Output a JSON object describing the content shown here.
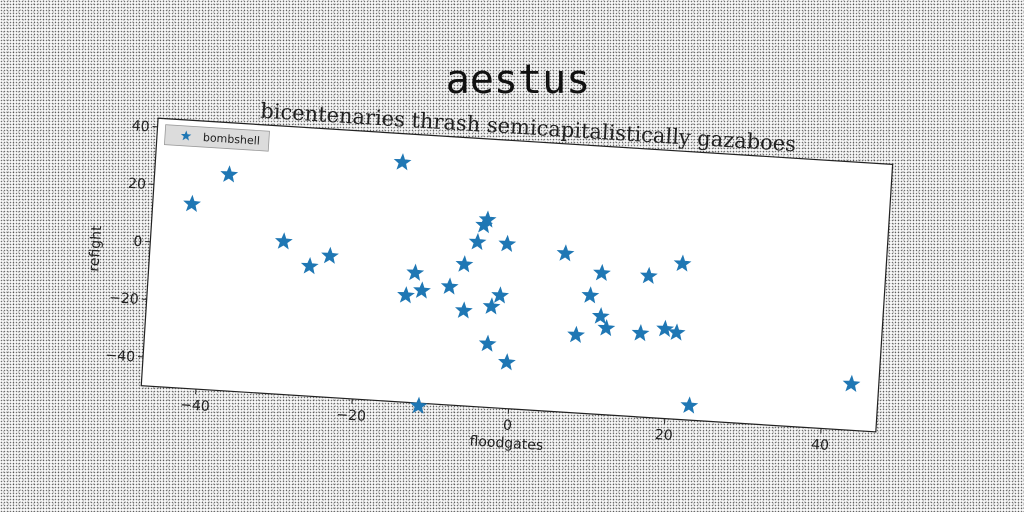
{
  "chart_data": {
    "type": "scatter",
    "title": "aestus",
    "subtitle": "bicentenaries thrash semicapitalistically gazaboes",
    "xlabel": "floodgates",
    "ylabel": "refight",
    "xlim": [
      -47,
      47
    ],
    "ylim": [
      -50,
      43
    ],
    "xticks": [
      -40,
      -20,
      0,
      20,
      40
    ],
    "yticks": [
      40,
      20,
      0,
      -20,
      -40
    ],
    "grid": false,
    "legend": {
      "position": "top-left"
    },
    "series": [
      {
        "name": "bombshell",
        "color": "#1f77b4",
        "marker": "star",
        "points": [
          {
            "x": -42,
            "y": 14
          },
          {
            "x": -37.5,
            "y": 25
          },
          {
            "x": -30,
            "y": 3
          },
          {
            "x": -26.5,
            "y": -5
          },
          {
            "x": -24,
            "y": -1
          },
          {
            "x": -15.5,
            "y": 33
          },
          {
            "x": -14,
            "y": -13
          },
          {
            "x": -13,
            "y": -5
          },
          {
            "x": -12,
            "y": -11
          },
          {
            "x": -11.5,
            "y": -51
          },
          {
            "x": -8.5,
            "y": -9
          },
          {
            "x": -6.8,
            "y": -1
          },
          {
            "x": -6.5,
            "y": -17
          },
          {
            "x": -5.3,
            "y": 7
          },
          {
            "x": -4.6,
            "y": 13
          },
          {
            "x": -4.2,
            "y": 15
          },
          {
            "x": -3.2,
            "y": -28
          },
          {
            "x": -3,
            "y": -15
          },
          {
            "x": -2,
            "y": -11
          },
          {
            "x": -1.5,
            "y": 7
          },
          {
            "x": -0.6,
            "y": -34
          },
          {
            "x": 6,
            "y": 5
          },
          {
            "x": 8,
            "y": -23
          },
          {
            "x": 9.5,
            "y": -9
          },
          {
            "x": 10.8,
            "y": -1
          },
          {
            "x": 11,
            "y": -16
          },
          {
            "x": 11.8,
            "y": -20
          },
          {
            "x": 16.2,
            "y": -21
          },
          {
            "x": 16.8,
            "y": -1
          },
          {
            "x": 19.3,
            "y": -19
          },
          {
            "x": 20.8,
            "y": -20
          },
          {
            "x": 21,
            "y": 4
          },
          {
            "x": 23,
            "y": -45
          },
          {
            "x": 43.5,
            "y": -34
          }
        ]
      }
    ]
  }
}
